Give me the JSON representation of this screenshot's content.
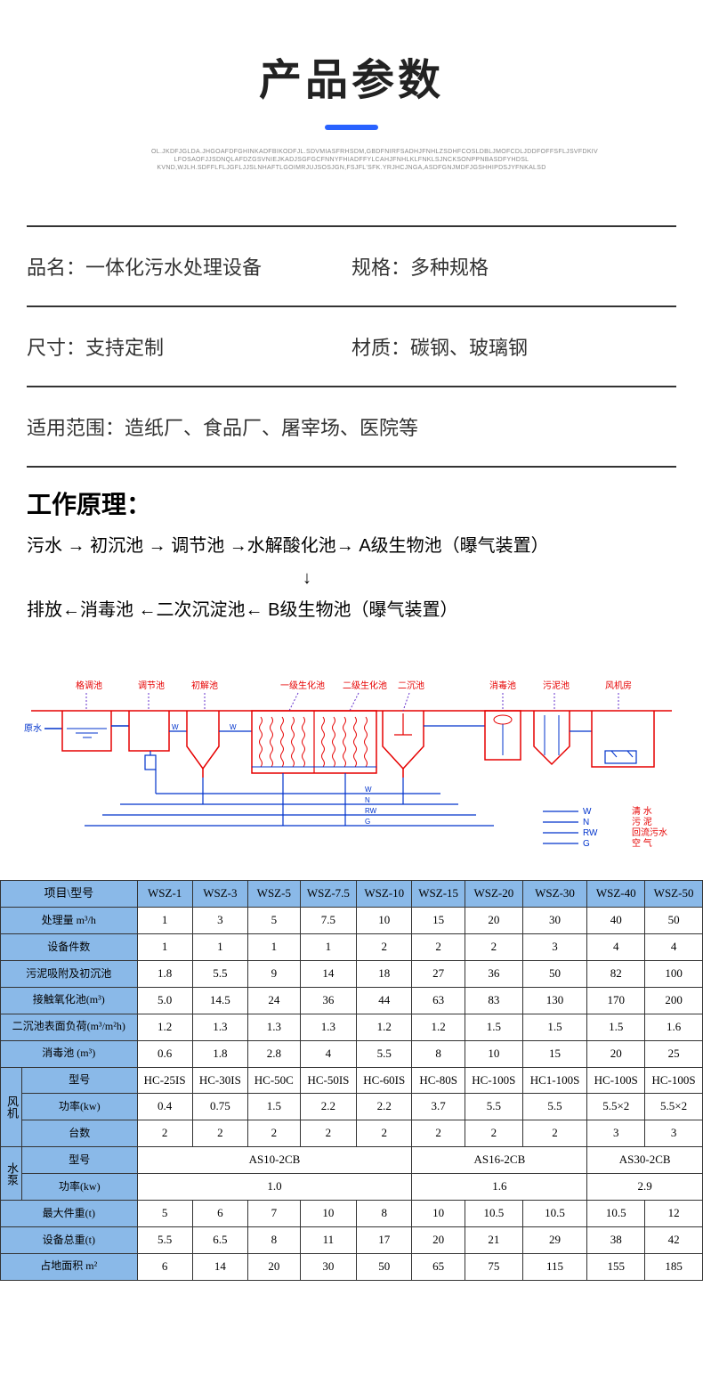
{
  "title": "产品参数",
  "subtext": "OL.JKDFJGLDA.JHGOAFDFGHINKADFBIKODFJL.SDVMIASFRHSDM,GBDFNIRFSADHJFNHLZSDHFCOSLDBLJMOFCDLJDDFOFFSFLJSVFDKIV LFOSAOFJJSDNQLAFDZGSVNIEJKADJSGFGCFNNYFHIADFFYLCAHJFNHLKLFNKLSJNCKSONPPNBASDFYHDSL KVND,WJLH.SDFFLFLJGFLJJSLNHAFTLGOIMRJUJSOSJGN,FSJFL'SFK.YRJHCJNGA,ASDFGNJMDFJGSHHIPDSJYFNKALSD",
  "info": {
    "name_label": "品名：",
    "name_value": "一体化污水处理设备",
    "spec_label": "规格：",
    "spec_value": "多种规格",
    "size_label": "尺寸：",
    "size_value": "支持定制",
    "material_label": "材质：",
    "material_value": "碳钢、玻璃钢",
    "scope_label": "适用范围：",
    "scope_value": "造纸厂、食品厂、屠宰场、医院等"
  },
  "principle": {
    "title": "工作原理：",
    "line1": "污水 → 初沉池 → 调节池 →水解酸化池→ A级生物池（曝气装置）",
    "arrow": "↓",
    "line2": "排放←消毒池 ←二次沉淀池← B级生物池（曝气装置）"
  },
  "diagram": {
    "colors": {
      "red": "#e60000",
      "blue": "#0033cc",
      "purple": "#6633cc"
    },
    "tanks": [
      "格调池",
      "调节池",
      "初解池",
      "一级生化池",
      "二级生化池",
      "二沉池",
      "消毒池",
      "污泥池",
      "风机房"
    ],
    "legend": [
      {
        "code": "W",
        "label": "清 水"
      },
      {
        "code": "N",
        "label": "污 泥"
      },
      {
        "code": "RW",
        "label": "回流污水"
      },
      {
        "code": "G",
        "label": "空 气"
      }
    ],
    "inlet": "原水"
  },
  "table": {
    "header": [
      "项目\\型号",
      "WSZ-1",
      "WSZ-3",
      "WSZ-5",
      "WSZ-7.5",
      "WSZ-10",
      "WSZ-15",
      "WSZ-20",
      "WSZ-30",
      "WSZ-40",
      "WSZ-50"
    ],
    "rows": [
      {
        "label": "处理量 m³/h",
        "vals": [
          "1",
          "3",
          "5",
          "7.5",
          "10",
          "15",
          "20",
          "30",
          "40",
          "50"
        ]
      },
      {
        "label": "设备件数",
        "vals": [
          "1",
          "1",
          "1",
          "1",
          "2",
          "2",
          "2",
          "3",
          "4",
          "4"
        ]
      },
      {
        "label": "污泥吸附及初沉池",
        "vals": [
          "1.8",
          "5.5",
          "9",
          "14",
          "18",
          "27",
          "36",
          "50",
          "82",
          "100"
        ]
      },
      {
        "label": "接触氧化池(m³)",
        "vals": [
          "5.0",
          "14.5",
          "24",
          "36",
          "44",
          "63",
          "83",
          "130",
          "170",
          "200"
        ]
      },
      {
        "label": "二沉池表面负荷(m³/m²h)",
        "vals": [
          "1.2",
          "1.3",
          "1.3",
          "1.3",
          "1.2",
          "1.2",
          "1.5",
          "1.5",
          "1.5",
          "1.6"
        ]
      },
      {
        "label": "消毒池 (m³)",
        "vals": [
          "0.6",
          "1.8",
          "2.8",
          "4",
          "5.5",
          "8",
          "10",
          "15",
          "20",
          "25"
        ]
      }
    ],
    "fan": {
      "group": "风机",
      "model_label": "型号",
      "models": [
        "HC-25IS",
        "HC-30IS",
        "HC-50C",
        "HC-50IS",
        "HC-60IS",
        "HC-80S",
        "HC-100S",
        "HC1-100S",
        "HC-100S",
        "HC-100S"
      ],
      "power_label": "功率(kw)",
      "powers": [
        "0.4",
        "0.75",
        "1.5",
        "2.2",
        "2.2",
        "3.7",
        "5.5",
        "5.5",
        "5.5×2",
        "5.5×2"
      ],
      "count_label": "台数",
      "counts": [
        "2",
        "2",
        "2",
        "2",
        "2",
        "2",
        "2",
        "2",
        "3",
        "3"
      ]
    },
    "pump": {
      "group": "水泵",
      "model_label": "型号",
      "model_spans": [
        {
          "val": "AS10-2CB",
          "span": 5
        },
        {
          "val": "AS16-2CB",
          "span": 3
        },
        {
          "val": "AS30-2CB",
          "span": 2
        }
      ],
      "power_label": "功率(kw)",
      "power_spans": [
        {
          "val": "1.0",
          "span": 5
        },
        {
          "val": "1.6",
          "span": 3
        },
        {
          "val": "2.9",
          "span": 2
        }
      ]
    },
    "bottom": [
      {
        "label": "最大件重(t)",
        "vals": [
          "5",
          "6",
          "7",
          "10",
          "8",
          "10",
          "10.5",
          "10.5",
          "10.5",
          "12"
        ]
      },
      {
        "label": "设备总重(t)",
        "vals": [
          "5.5",
          "6.5",
          "8",
          "11",
          "17",
          "20",
          "21",
          "29",
          "38",
          "42"
        ]
      },
      {
        "label": "占地面积 m²",
        "vals": [
          "6",
          "14",
          "20",
          "30",
          "50",
          "65",
          "75",
          "115",
          "155",
          "185"
        ]
      }
    ]
  }
}
